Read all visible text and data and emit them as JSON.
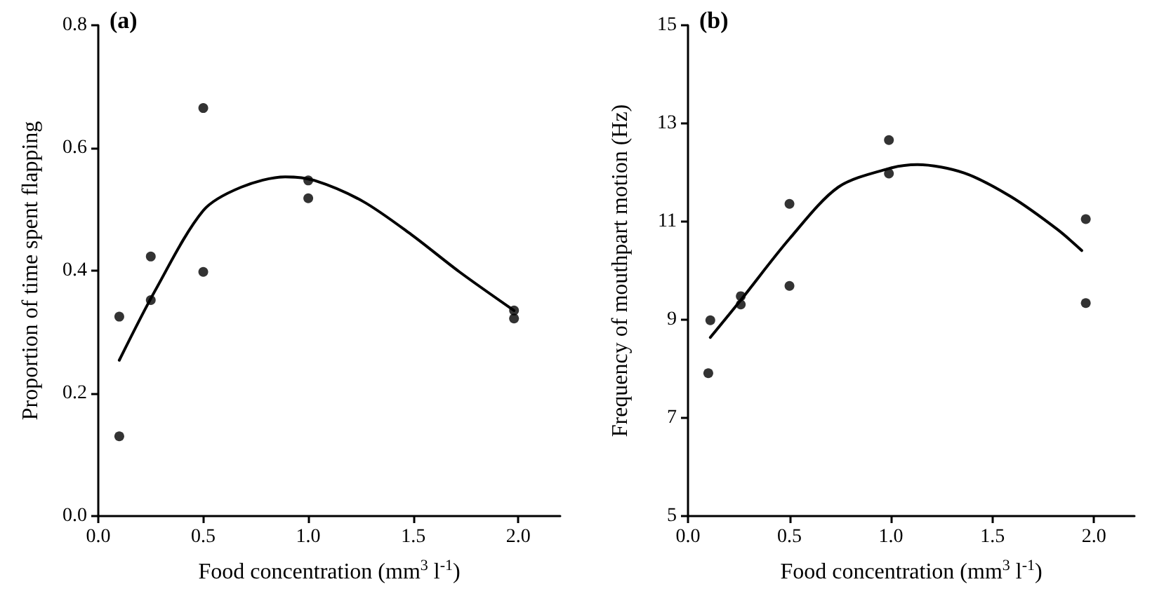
{
  "chart_data": [
    {
      "type": "scatter",
      "annotations": [
        "(a)"
      ],
      "xlabel": "Food concentration (mm$^{3}$ l$^{-1}$)",
      "ylabel": "Proportion of time spent flapping",
      "xlim": [
        0,
        2.2
      ],
      "xticks": [
        {
          "value": 0,
          "label": "0.0"
        },
        {
          "value": 0.5,
          "label": "0.5"
        },
        {
          "value": 1,
          "label": "1.0"
        },
        {
          "value": 1.5,
          "label": "1.5"
        },
        {
          "value": 2,
          "label": "2.0"
        }
      ],
      "ylim": [
        0,
        0.8
      ],
      "yticks": [
        {
          "value": 0,
          "label": "0.0"
        },
        0.2,
        0.4,
        0.6,
        0.8
      ],
      "grid": false,
      "series": [
        {
          "marker": "circle",
          "color": "#000000",
          "x": [
            0.1,
            0.1,
            0.25,
            0.25,
            0.5,
            0.5,
            1.0,
            1.0,
            1.98,
            1.98
          ],
          "values": [
            0.325,
            0.13,
            0.352,
            0.423,
            0.665,
            0.398,
            0.547,
            0.518,
            0.335,
            0.322
          ]
        },
        {
          "type": "line",
          "color": "#000000",
          "line_style": "solid",
          "x": [
            0.1,
            0.27,
            0.5,
            0.68,
            0.89,
            1.03,
            1.26,
            1.49,
            1.72,
            1.98
          ],
          "values": [
            0.254,
            0.367,
            0.498,
            0.536,
            0.553,
            0.547,
            0.513,
            0.459,
            0.398,
            0.335
          ]
        }
      ]
    },
    {
      "type": "scatter",
      "annotations": [
        "(b)"
      ],
      "xlabel": "Food concentration (mm$^{3}$ l$^{-1}$)",
      "ylabel": "Frequency of mouthpart motion (Hz)",
      "xlim": [
        0,
        2.2
      ],
      "xticks": [
        {
          "value": 0,
          "label": "0.0"
        },
        {
          "value": 0.5,
          "label": "0.5"
        },
        {
          "value": 1,
          "label": "1.0"
        },
        {
          "value": 1.5,
          "label": "1.5"
        },
        {
          "value": 2,
          "label": "2.0"
        }
      ],
      "ylim": [
        5,
        15
      ],
      "yticks": [
        5,
        7,
        9,
        11,
        13,
        15
      ],
      "grid": false,
      "series": [
        {
          "marker": "circle",
          "color": "#000000",
          "x": [
            0.11,
            0.1,
            0.26,
            0.26,
            0.5,
            0.5,
            0.99,
            0.99,
            1.96,
            1.96
          ],
          "values": [
            8.99,
            7.91,
            9.48,
            9.31,
            11.36,
            9.69,
            12.66,
            11.98,
            11.05,
            9.34
          ]
        },
        {
          "type": "line",
          "color": "#000000",
          "line_style": "solid",
          "x": [
            0.11,
            0.26,
            0.5,
            0.74,
            0.99,
            1.13,
            1.36,
            1.59,
            1.82,
            1.94
          ],
          "values": [
            8.64,
            9.4,
            10.65,
            11.7,
            12.08,
            12.16,
            11.99,
            11.51,
            10.84,
            10.41
          ]
        }
      ]
    }
  ]
}
